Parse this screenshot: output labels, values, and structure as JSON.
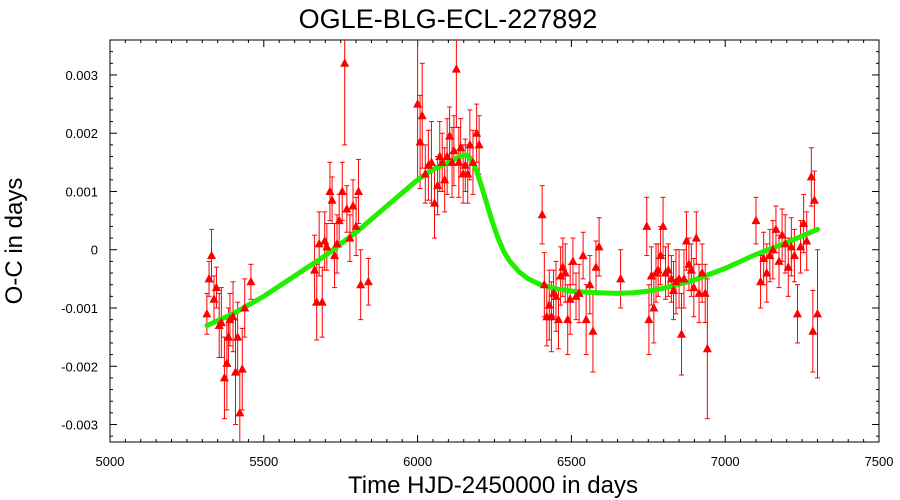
{
  "chart_data": {
    "type": "scatter",
    "title": "OGLE-BLG-ECL-227892",
    "xlabel": "Time HJD-2450000 in days",
    "ylabel": "O-C in days",
    "xlim": [
      5000,
      7500
    ],
    "ylim": [
      -0.0033,
      0.0036
    ],
    "x_ticks": [
      5000,
      5500,
      6000,
      6500,
      7000,
      7500
    ],
    "y_ticks": [
      -0.003,
      -0.002,
      -0.001,
      0,
      0.001,
      0.002,
      0.003
    ],
    "x_tick_labels": [
      "5000",
      "5500",
      "6000",
      "6500",
      "7000",
      "7500"
    ],
    "y_tick_labels": [
      "-0.003",
      "-0.002",
      "-0.001",
      "0",
      "0.001",
      "0.002",
      "0.003"
    ],
    "grid": false,
    "series": [
      {
        "kind": "points_with_errorbars",
        "color": "#ff0000",
        "marker": "triangle",
        "points": [
          {
            "x": 5315,
            "y": -0.0011,
            "err": 0.00035
          },
          {
            "x": 5322,
            "y": -0.0005,
            "err": 0.0003
          },
          {
            "x": 5330,
            "y": -0.0001,
            "err": 0.00045
          },
          {
            "x": 5338,
            "y": -0.00085,
            "err": 0.0004
          },
          {
            "x": 5346,
            "y": -0.00065,
            "err": 0.00035
          },
          {
            "x": 5355,
            "y": -0.0013,
            "err": 0.00055
          },
          {
            "x": 5362,
            "y": -0.00125,
            "err": 0.0006
          },
          {
            "x": 5372,
            "y": -0.0022,
            "err": 0.0007
          },
          {
            "x": 5380,
            "y": -0.00195,
            "err": 0.0008
          },
          {
            "x": 5385,
            "y": -0.0015,
            "err": 0.0005
          },
          {
            "x": 5390,
            "y": -0.0012,
            "err": 0.00045
          },
          {
            "x": 5400,
            "y": -0.00115,
            "err": 0.0006
          },
          {
            "x": 5408,
            "y": -0.0021,
            "err": 0.0009
          },
          {
            "x": 5415,
            "y": -0.0015,
            "err": 0.0006
          },
          {
            "x": 5422,
            "y": -0.0028,
            "err": 0.0007
          },
          {
            "x": 5430,
            "y": -0.00205,
            "err": 0.0007
          },
          {
            "x": 5438,
            "y": -0.001,
            "err": 0.0005
          },
          {
            "x": 5458,
            "y": -0.00055,
            "err": 0.0003
          },
          {
            "x": 5665,
            "y": -0.00035,
            "err": 0.0006
          },
          {
            "x": 5672,
            "y": -0.0009,
            "err": 0.00065
          },
          {
            "x": 5680,
            "y": 0.0001,
            "err": 0.00055
          },
          {
            "x": 5690,
            "y": -0.0009,
            "err": 0.0006
          },
          {
            "x": 5698,
            "y": 0.00015,
            "err": 0.0005
          },
          {
            "x": 5705,
            "y": 5e-05,
            "err": 0.0004
          },
          {
            "x": 5715,
            "y": 0.001,
            "err": 0.0005
          },
          {
            "x": 5722,
            "y": 0.00085,
            "err": 0.0004
          },
          {
            "x": 5730,
            "y": -0.0001,
            "err": 0.00055
          },
          {
            "x": 5738,
            "y": 0.0001,
            "err": 0.0005
          },
          {
            "x": 5745,
            "y": 0.0005,
            "err": 0.00045
          },
          {
            "x": 5755,
            "y": 0.001,
            "err": 0.0005
          },
          {
            "x": 5763,
            "y": 0.0032,
            "err": 0.0014
          },
          {
            "x": 5770,
            "y": 0.0007,
            "err": 0.0004
          },
          {
            "x": 5780,
            "y": 0.0002,
            "err": 0.0004
          },
          {
            "x": 5790,
            "y": 0.00075,
            "err": 0.00045
          },
          {
            "x": 5800,
            "y": 0.0004,
            "err": 0.0005
          },
          {
            "x": 5808,
            "y": 0.001,
            "err": 0.00055
          },
          {
            "x": 5815,
            "y": -0.0006,
            "err": 0.0006
          },
          {
            "x": 5840,
            "y": -0.00055,
            "err": 0.0004
          },
          {
            "x": 6000,
            "y": 0.0025,
            "err": 0.0013
          },
          {
            "x": 6008,
            "y": 0.00185,
            "err": 0.0008
          },
          {
            "x": 6015,
            "y": 0.0023,
            "err": 0.0009
          },
          {
            "x": 6025,
            "y": 0.0013,
            "err": 0.0005
          },
          {
            "x": 6035,
            "y": 0.00145,
            "err": 0.0006
          },
          {
            "x": 6045,
            "y": 0.0015,
            "err": 0.0007
          },
          {
            "x": 6055,
            "y": 0.0008,
            "err": 0.0006
          },
          {
            "x": 6065,
            "y": 0.0011,
            "err": 0.0005
          },
          {
            "x": 6072,
            "y": 0.0016,
            "err": 0.0006
          },
          {
            "x": 6080,
            "y": 0.0015,
            "err": 0.0005
          },
          {
            "x": 6088,
            "y": 0.0012,
            "err": 0.00055
          },
          {
            "x": 6096,
            "y": 0.0016,
            "err": 0.00065
          },
          {
            "x": 6104,
            "y": 0.00195,
            "err": 0.0005
          },
          {
            "x": 6112,
            "y": 0.0015,
            "err": 0.0006
          },
          {
            "x": 6118,
            "y": 0.0017,
            "err": 0.0006
          },
          {
            "x": 6126,
            "y": 0.0031,
            "err": 0.001
          },
          {
            "x": 6134,
            "y": 0.0015,
            "err": 0.0006
          },
          {
            "x": 6140,
            "y": 0.00175,
            "err": 0.0005
          },
          {
            "x": 6148,
            "y": 0.0013,
            "err": 0.0005
          },
          {
            "x": 6155,
            "y": 0.00145,
            "err": 0.00045
          },
          {
            "x": 6163,
            "y": 0.0013,
            "err": 0.0005
          },
          {
            "x": 6170,
            "y": 0.0018,
            "err": 0.0006
          },
          {
            "x": 6180,
            "y": 0.0015,
            "err": 0.00055
          },
          {
            "x": 6192,
            "y": 0.002,
            "err": 0.0005
          },
          {
            "x": 6200,
            "y": 0.0018,
            "err": 0.0005
          },
          {
            "x": 6405,
            "y": 0.0006,
            "err": 0.0005
          },
          {
            "x": 6412,
            "y": -0.0006,
            "err": 0.00055
          },
          {
            "x": 6420,
            "y": -0.00115,
            "err": 0.0005
          },
          {
            "x": 6428,
            "y": -0.00095,
            "err": 0.0006
          },
          {
            "x": 6435,
            "y": -0.00115,
            "err": 0.0006
          },
          {
            "x": 6442,
            "y": -0.00075,
            "err": 0.0004
          },
          {
            "x": 6450,
            "y": -0.0008,
            "err": 0.0006
          },
          {
            "x": 6458,
            "y": -0.0012,
            "err": 0.0005
          },
          {
            "x": 6465,
            "y": -0.00045,
            "err": 0.0005
          },
          {
            "x": 6472,
            "y": -0.0003,
            "err": 0.0005
          },
          {
            "x": 6480,
            "y": -0.0004,
            "err": 0.0005
          },
          {
            "x": 6488,
            "y": -0.0012,
            "err": 0.0006
          },
          {
            "x": 6496,
            "y": -0.00085,
            "err": 0.0006
          },
          {
            "x": 6505,
            "y": -0.0002,
            "err": 0.0004
          },
          {
            "x": 6515,
            "y": -0.0008,
            "err": 0.0004
          },
          {
            "x": 6525,
            "y": -0.00075,
            "err": 0.0005
          },
          {
            "x": 6538,
            "y": -0.0001,
            "err": 0.0004
          },
          {
            "x": 6548,
            "y": -0.0012,
            "err": 0.0006
          },
          {
            "x": 6560,
            "y": -0.0006,
            "err": 0.0005
          },
          {
            "x": 6570,
            "y": -0.0014,
            "err": 0.0007
          },
          {
            "x": 6580,
            "y": -0.0003,
            "err": 0.00045
          },
          {
            "x": 6590,
            "y": 5e-05,
            "err": 0.0005
          },
          {
            "x": 6660,
            "y": -0.0005,
            "err": 0.0005
          },
          {
            "x": 6745,
            "y": 0.0004,
            "err": 0.0005
          },
          {
            "x": 6752,
            "y": -0.0012,
            "err": 0.0006
          },
          {
            "x": 6760,
            "y": -0.00045,
            "err": 0.0005
          },
          {
            "x": 6768,
            "y": -0.001,
            "err": 0.0006
          },
          {
            "x": 6775,
            "y": -0.0004,
            "err": 0.0005
          },
          {
            "x": 6782,
            "y": -0.00035,
            "err": 0.00045
          },
          {
            "x": 6790,
            "y": -0.0001,
            "err": 0.0005
          },
          {
            "x": 6798,
            "y": 0.0004,
            "err": 0.0005
          },
          {
            "x": 6806,
            "y": -0.0004,
            "err": 0.00045
          },
          {
            "x": 6815,
            "y": -0.00035,
            "err": 0.00045
          },
          {
            "x": 6825,
            "y": -0.0005,
            "err": 0.0004
          },
          {
            "x": 6832,
            "y": -0.0007,
            "err": 0.0005
          },
          {
            "x": 6840,
            "y": -0.00055,
            "err": 0.00055
          },
          {
            "x": 6850,
            "y": -0.0005,
            "err": 0.0005
          },
          {
            "x": 6858,
            "y": -0.00145,
            "err": 0.0007
          },
          {
            "x": 6866,
            "y": -0.0005,
            "err": 0.0005
          },
          {
            "x": 6874,
            "y": 0.00015,
            "err": 0.0005
          },
          {
            "x": 6882,
            "y": -0.00025,
            "err": 0.00045
          },
          {
            "x": 6890,
            "y": -0.00035,
            "err": 0.00045
          },
          {
            "x": 6898,
            "y": -0.00065,
            "err": 0.0005
          },
          {
            "x": 6906,
            "y": 0.0002,
            "err": 0.00045
          },
          {
            "x": 6915,
            "y": -0.00075,
            "err": 0.0005
          },
          {
            "x": 6925,
            "y": -0.0004,
            "err": 0.0005
          },
          {
            "x": 6935,
            "y": -0.00075,
            "err": 0.0005
          },
          {
            "x": 6942,
            "y": -0.0017,
            "err": 0.0012
          },
          {
            "x": 7100,
            "y": 0.0005,
            "err": 0.0004
          },
          {
            "x": 7115,
            "y": -0.00055,
            "err": 0.00045
          },
          {
            "x": 7125,
            "y": -0.00015,
            "err": 0.00045
          },
          {
            "x": 7135,
            "y": -0.0004,
            "err": 0.0005
          },
          {
            "x": 7145,
            "y": -0.0001,
            "err": 0.00045
          },
          {
            "x": 7155,
            "y": 0.0,
            "err": 0.0005
          },
          {
            "x": 7165,
            "y": 0.00035,
            "err": 0.0004
          },
          {
            "x": 7175,
            "y": -0.0002,
            "err": 0.00045
          },
          {
            "x": 7185,
            "y": 0.00025,
            "err": 0.00045
          },
          {
            "x": 7195,
            "y": 0.0001,
            "err": 0.0005
          },
          {
            "x": 7205,
            "y": -0.0003,
            "err": 0.0005
          },
          {
            "x": 7215,
            "y": 5e-05,
            "err": 0.0005
          },
          {
            "x": 7225,
            "y": -0.0001,
            "err": 0.00045
          },
          {
            "x": 7235,
            "y": -0.0011,
            "err": 0.0005
          },
          {
            "x": 7245,
            "y": 5e-05,
            "err": 0.00045
          },
          {
            "x": 7255,
            "y": 0.00045,
            "err": 0.0005
          },
          {
            "x": 7265,
            "y": 0.00015,
            "err": 0.0005
          },
          {
            "x": 7280,
            "y": 0.00125,
            "err": 0.0005
          },
          {
            "x": 7285,
            "y": -0.0014,
            "err": 0.0007
          },
          {
            "x": 7290,
            "y": 0.00085,
            "err": 0.0005
          },
          {
            "x": 7300,
            "y": -0.0011,
            "err": 0.0011
          }
        ]
      },
      {
        "kind": "model_curve",
        "color": "#22ee00",
        "x": [
          5315,
          5400,
          5500,
          5600,
          5700,
          5800,
          5900,
          6000,
          6050,
          6100,
          6130,
          6150,
          6160,
          6170,
          6180,
          6190,
          6200,
          6220,
          6240,
          6260,
          6280,
          6300,
          6330,
          6360,
          6400,
          6450,
          6500,
          6550,
          6600,
          6650,
          6700,
          6750,
          6800,
          6900,
          7000,
          7100,
          7200,
          7300
        ],
        "y": [
          -0.0013,
          -0.0011,
          -0.0008,
          -0.00045,
          -0.0001,
          0.0003,
          0.00075,
          0.0012,
          0.00138,
          0.0015,
          0.00158,
          0.00162,
          0.00162,
          0.00158,
          0.0015,
          0.00138,
          0.00122,
          0.00088,
          0.00053,
          0.00022,
          -3e-05,
          -0.0002,
          -0.00038,
          -0.0005,
          -0.0006,
          -0.00067,
          -0.00071,
          -0.00073,
          -0.00074,
          -0.00075,
          -0.00074,
          -0.00071,
          -0.00066,
          -0.00052,
          -0.00032,
          -8e-05,
          0.00012,
          0.00035
        ]
      }
    ]
  }
}
